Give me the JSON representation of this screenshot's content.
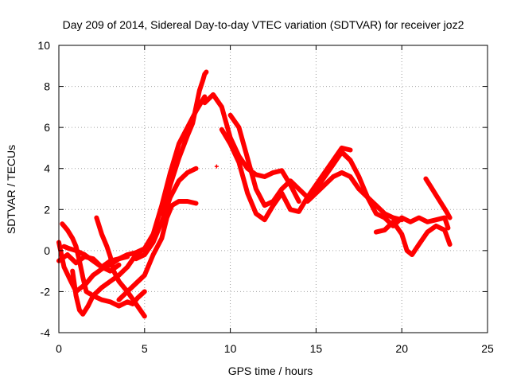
{
  "chart_data": {
    "type": "scatter",
    "title": "Day 209 of 2014, Sidereal Day-to-day VTEC variation (SDTVAR) for receiver joz2",
    "xlabel": "GPS time / hours",
    "ylabel": "SDTVAR / TECUs",
    "xlim": [
      0,
      25
    ],
    "ylim": [
      -4,
      10
    ],
    "xticks": [
      0,
      5,
      10,
      15,
      20,
      25
    ],
    "yticks": [
      -4,
      -2,
      0,
      2,
      4,
      6,
      8,
      10
    ],
    "xtick_labels": [
      "0",
      "5",
      "10",
      "15",
      "20",
      "25"
    ],
    "ytick_labels": [
      "-4",
      "-2",
      "0",
      "2",
      "4",
      "6",
      "8",
      "10"
    ],
    "grid": true,
    "marker": "+",
    "color": "#ff0000",
    "series": [
      {
        "name": "arc-1",
        "x": [
          0.0,
          0.5,
          1.0,
          1.5,
          2.0,
          2.5,
          3.0,
          3.5,
          4.0,
          4.5,
          5.0,
          5.5,
          6.0,
          6.5,
          7.0,
          7.5,
          8.0,
          8.5
        ],
        "y": [
          -0.5,
          -0.2,
          -0.6,
          -0.3,
          -0.4,
          -0.8,
          -0.5,
          -0.4,
          -0.2,
          -0.1,
          0.1,
          0.8,
          2.2,
          3.8,
          5.2,
          6.0,
          6.8,
          7.5
        ]
      },
      {
        "name": "arc-2",
        "x": [
          6.0,
          6.5,
          7.0,
          7.5,
          7.8,
          8.0,
          8.2,
          8.4,
          8.5,
          8.6
        ],
        "y": [
          1.8,
          3.2,
          4.5,
          5.6,
          6.2,
          7.0,
          7.8,
          8.3,
          8.6,
          8.7
        ]
      },
      {
        "name": "arc-3",
        "x": [
          8.5,
          9.0,
          9.5,
          10.0,
          10.5,
          11.0,
          11.5,
          12.0,
          12.5,
          13.0,
          13.5,
          14.0
        ],
        "y": [
          7.2,
          7.6,
          7.0,
          5.5,
          4.6,
          4.0,
          3.7,
          3.6,
          3.8,
          3.9,
          3.2,
          2.4
        ]
      },
      {
        "name": "arc-4",
        "x": [
          10.0,
          10.5,
          11.0,
          11.5,
          12.0,
          12.5,
          13.0,
          13.5,
          14.0,
          14.5,
          15.0,
          15.5,
          16.0,
          16.5,
          17.0
        ],
        "y": [
          6.6,
          6.0,
          4.5,
          3.0,
          2.2,
          2.4,
          3.0,
          3.4,
          3.0,
          2.6,
          3.0,
          3.6,
          4.2,
          4.8,
          4.4
        ]
      },
      {
        "name": "arc-5",
        "x": [
          9.5,
          10.0,
          10.5,
          11.0,
          11.5,
          12.0,
          12.5,
          13.0,
          13.5,
          14.0,
          14.5,
          15.0,
          15.5,
          16.0,
          16.5,
          17.0
        ],
        "y": [
          5.9,
          5.2,
          4.3,
          2.8,
          1.8,
          1.5,
          2.2,
          2.8,
          2.0,
          1.9,
          2.6,
          3.2,
          3.8,
          4.4,
          5.0,
          4.9
        ]
      },
      {
        "name": "arc-6",
        "x": [
          14.5,
          15.0,
          15.5,
          16.0,
          16.5,
          17.0,
          17.5,
          18.0,
          18.5,
          19.0,
          19.5,
          20.0
        ],
        "y": [
          2.4,
          2.8,
          3.2,
          3.6,
          3.8,
          3.6,
          3.0,
          2.6,
          2.2,
          1.8,
          1.6,
          1.5
        ]
      },
      {
        "name": "arc-7",
        "x": [
          16.5,
          17.0,
          17.5,
          18.0,
          18.5,
          19.0,
          19.5,
          20.0,
          20.5,
          21.0,
          21.5,
          22.0,
          22.5,
          22.7
        ],
        "y": [
          4.8,
          4.4,
          3.6,
          2.6,
          1.8,
          1.6,
          1.2,
          1.6,
          1.4,
          1.6,
          1.4,
          1.5,
          1.6,
          1.1
        ]
      },
      {
        "name": "arc-8",
        "x": [
          18.5,
          19.0,
          19.5,
          20.0,
          20.3,
          20.6,
          21.0,
          21.5,
          22.0,
          22.5,
          22.8
        ],
        "y": [
          0.9,
          1.0,
          1.4,
          0.8,
          0.0,
          -0.2,
          0.3,
          0.9,
          1.2,
          1.0,
          0.3
        ]
      },
      {
        "name": "arc-9",
        "x": [
          21.4,
          21.7,
          22.0,
          22.3,
          22.6,
          22.8
        ],
        "y": [
          3.5,
          3.1,
          2.7,
          2.3,
          1.9,
          1.6
        ]
      },
      {
        "name": "arc-10",
        "x": [
          0.0,
          0.3,
          0.7,
          1.0,
          1.3,
          1.6,
          2.0,
          2.5,
          3.0,
          3.5,
          4.0
        ],
        "y": [
          0.4,
          -0.8,
          -1.5,
          -2.0,
          -1.8,
          -1.6,
          -1.2,
          -0.9,
          -0.7,
          -0.4,
          -0.3
        ]
      },
      {
        "name": "arc-11",
        "x": [
          0.2,
          0.5,
          0.8,
          1.0,
          1.2,
          1.4,
          1.6,
          2.0,
          2.5,
          3.0,
          3.5,
          4.0,
          4.3,
          4.6,
          5.0
        ],
        "y": [
          1.3,
          1.0,
          0.6,
          0.2,
          -0.5,
          -1.3,
          -2.0,
          -2.2,
          -2.4,
          -2.5,
          -2.7,
          -2.5,
          -2.6,
          -2.3,
          -2.0
        ]
      },
      {
        "name": "arc-12",
        "x": [
          0.8,
          1.0,
          1.2,
          1.4,
          1.7,
          2.0,
          2.5,
          3.0,
          3.5,
          4.0,
          4.5,
          5.0
        ],
        "y": [
          -1.0,
          -2.2,
          -2.9,
          -3.1,
          -2.7,
          -2.2,
          -1.8,
          -1.5,
          -1.2,
          -0.8,
          -0.2,
          0.1
        ]
      },
      {
        "name": "arc-13",
        "x": [
          2.2,
          2.5,
          2.8,
          3.0,
          3.2,
          3.5,
          4.0,
          4.5,
          5.0
        ],
        "y": [
          1.6,
          0.8,
          0.2,
          -0.3,
          -1.0,
          -1.5,
          -2.0,
          -2.6,
          -3.2
        ]
      },
      {
        "name": "arc-14",
        "x": [
          3.5,
          4.0,
          4.5,
          5.0,
          5.5,
          6.0,
          6.3,
          6.6,
          7.0,
          7.5,
          8.0
        ],
        "y": [
          -2.4,
          -2.0,
          -1.6,
          -1.2,
          -0.2,
          0.6,
          1.6,
          2.2,
          2.4,
          2.4,
          2.3
        ]
      },
      {
        "name": "arc-15",
        "x": [
          4.5,
          5.0,
          5.5,
          6.0,
          6.5,
          7.0,
          7.5,
          8.0
        ],
        "y": [
          -0.4,
          -0.2,
          0.4,
          1.4,
          2.6,
          3.4,
          3.8,
          4.0
        ]
      },
      {
        "name": "arc-16",
        "x": [
          0.3,
          0.6,
          1.0,
          1.5,
          2.0,
          2.5,
          3.0,
          3.5
        ],
        "y": [
          0.2,
          0.1,
          0.0,
          -0.2,
          -0.5,
          -0.8,
          -1.0,
          -0.7
        ]
      }
    ],
    "isolated_points": [
      {
        "x": 9.2,
        "y": 4.1
      }
    ]
  }
}
